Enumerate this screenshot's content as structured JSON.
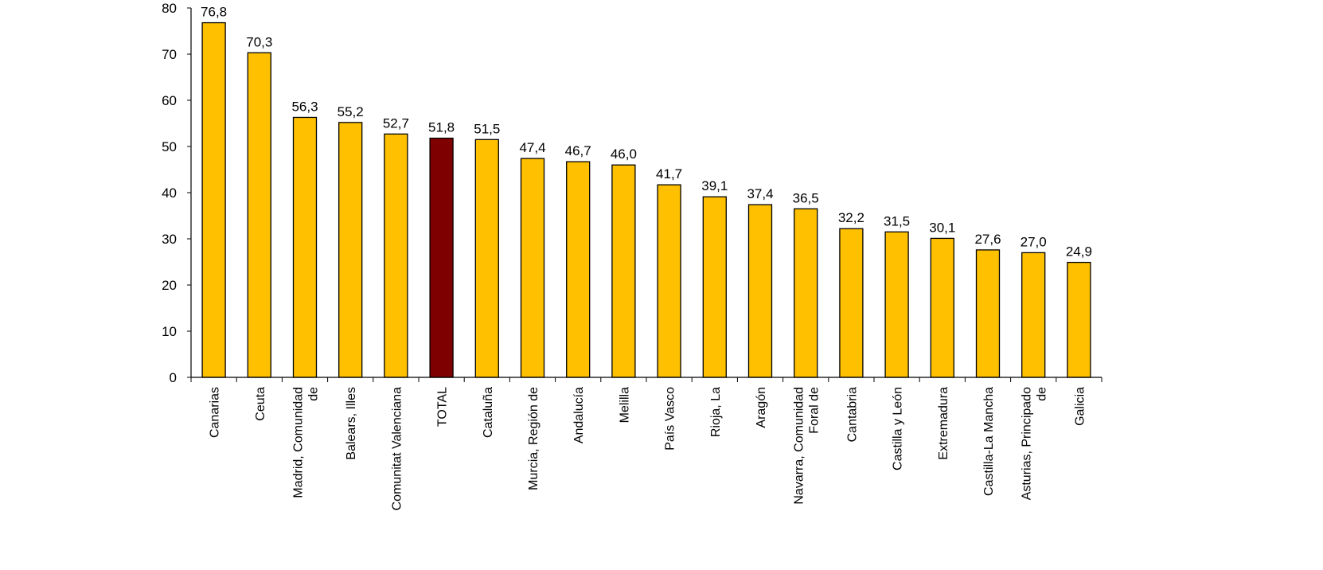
{
  "chart_data": {
    "type": "bar",
    "title": "",
    "xlabel": "",
    "ylabel": "",
    "ylim": [
      0,
      80
    ],
    "yticks": [
      0,
      10,
      20,
      30,
      40,
      50,
      60,
      70,
      80
    ],
    "grid": false,
    "legend": "none",
    "bar_color": "#FFC000",
    "highlight_color": "#7F0000",
    "categories": [
      [
        "Canarias"
      ],
      [
        "Ceuta"
      ],
      [
        "Madrid, Comunidad",
        "de"
      ],
      [
        "Balears, Illes"
      ],
      [
        "Comunitat Valenciana"
      ],
      [
        "TOTAL"
      ],
      [
        "Cataluña"
      ],
      [
        "Murcia, Región de"
      ],
      [
        "Andalucía"
      ],
      [
        "Melilla"
      ],
      [
        "País Vasco"
      ],
      [
        "Rioja, La"
      ],
      [
        "Aragón"
      ],
      [
        "Navarra, Comunidad",
        "Foral de"
      ],
      [
        "Cantabria"
      ],
      [
        "Castilla y León"
      ],
      [
        "Extremadura"
      ],
      [
        "Castilla-La Mancha"
      ],
      [
        "Asturias, Principado",
        "de"
      ],
      [
        "Galicia"
      ]
    ],
    "values": [
      76.8,
      70.3,
      56.3,
      55.2,
      52.7,
      51.8,
      51.5,
      47.4,
      46.7,
      46.0,
      41.7,
      39.1,
      37.4,
      36.5,
      32.2,
      31.5,
      30.1,
      27.6,
      27.0,
      24.9
    ],
    "data_labels": [
      "76,8",
      "70,3",
      "56,3",
      "55,2",
      "52,7",
      "51,8",
      "51,5",
      "47,4",
      "46,7",
      "46,0",
      "41,7",
      "39,1",
      "37,4",
      "36,5",
      "32,2",
      "31,5",
      "30,1",
      "27,6",
      "27,0",
      "24,9"
    ],
    "highlight_category": "TOTAL"
  }
}
